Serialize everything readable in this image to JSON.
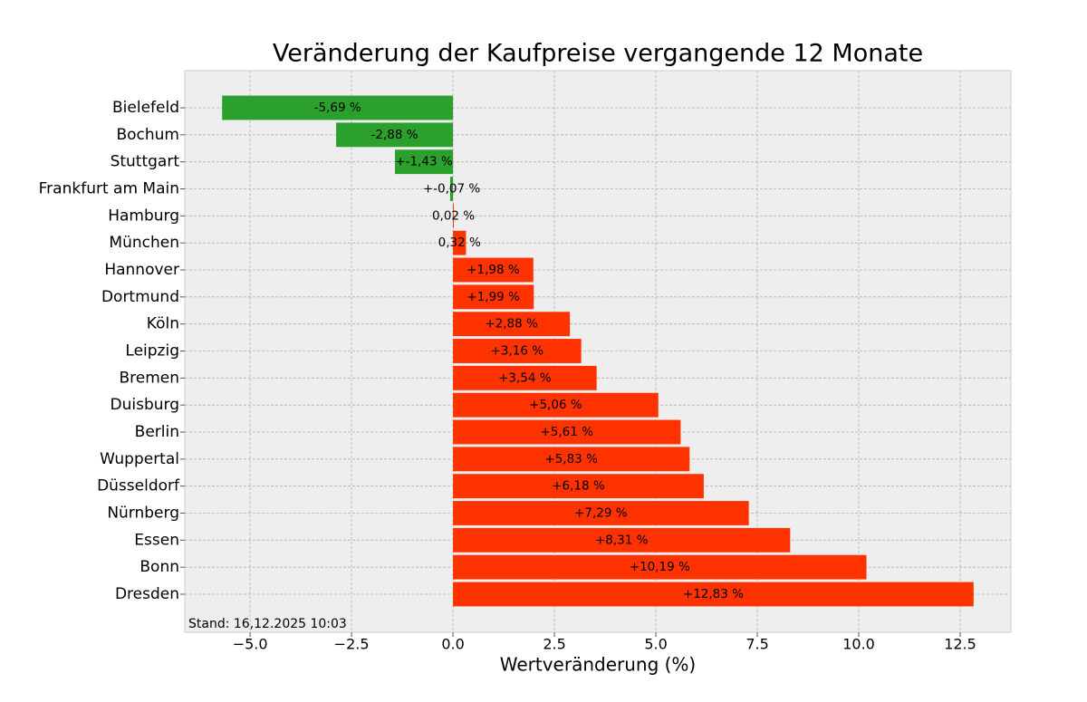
{
  "chart_data": {
    "type": "barh",
    "title": "Veränderung der Kaufpreise vergangende 12 Monate",
    "x_label": "Wertveränderung (%)",
    "annotation": "Stand: 16,12.2025 10:03",
    "categories": [
      "Bielefeld",
      "Bochum",
      "Stuttgart",
      "Frankfurt am Main",
      "Hamburg",
      "München",
      "Hannover",
      "Dortmund",
      "Köln",
      "Leipzig",
      "Bremen",
      "Duisburg",
      "Berlin",
      "Wuppertal",
      "Düsseldorf",
      "Nürnberg",
      "Essen",
      "Bonn",
      "Dresden"
    ],
    "values": [
      -5.69,
      -2.88,
      -1.43,
      -0.07,
      0.02,
      0.32,
      1.98,
      1.99,
      2.88,
      3.16,
      3.54,
      5.06,
      5.61,
      5.83,
      6.18,
      7.29,
      8.31,
      10.19,
      12.83
    ],
    "value_labels": [
      "-5,69 %",
      "-2,88 %",
      "+-1,43 %",
      "+-0,07 %",
      "0,02 %",
      "0,32 %",
      "+1,98 %",
      "+1,99 %",
      "+2,88 %",
      "+3,16 %",
      "+3,54 %",
      "+5,06 %",
      "+5,61 %",
      "+5,83 %",
      "+6,18 %",
      "+7,29 %",
      "+8,31 %",
      "+10,19 %",
      "+12,83 %"
    ],
    "colors": [
      "#2ca02c",
      "#2ca02c",
      "#2ca02c",
      "#2ca02c",
      "#ff3300",
      "#ff3300",
      "#ff3300",
      "#ff3300",
      "#ff3300",
      "#ff3300",
      "#ff3300",
      "#ff3300",
      "#ff3300",
      "#ff3300",
      "#ff3300",
      "#ff3300",
      "#ff3300",
      "#ff3300",
      "#ff3300"
    ],
    "xlim": [
      -6.61,
      13.75
    ],
    "xticks": [
      {
        "value": -5,
        "label": "−5.0"
      },
      2.5,
      {
        "value": -2.5,
        "label": "−2.5"
      },
      {
        "value": 0,
        "label": "0.0"
      },
      {
        "value": 5,
        "label": "5.0"
      },
      7.5,
      {
        "value": 10,
        "label": "10.0"
      },
      12.5
    ],
    "grid": true
  }
}
